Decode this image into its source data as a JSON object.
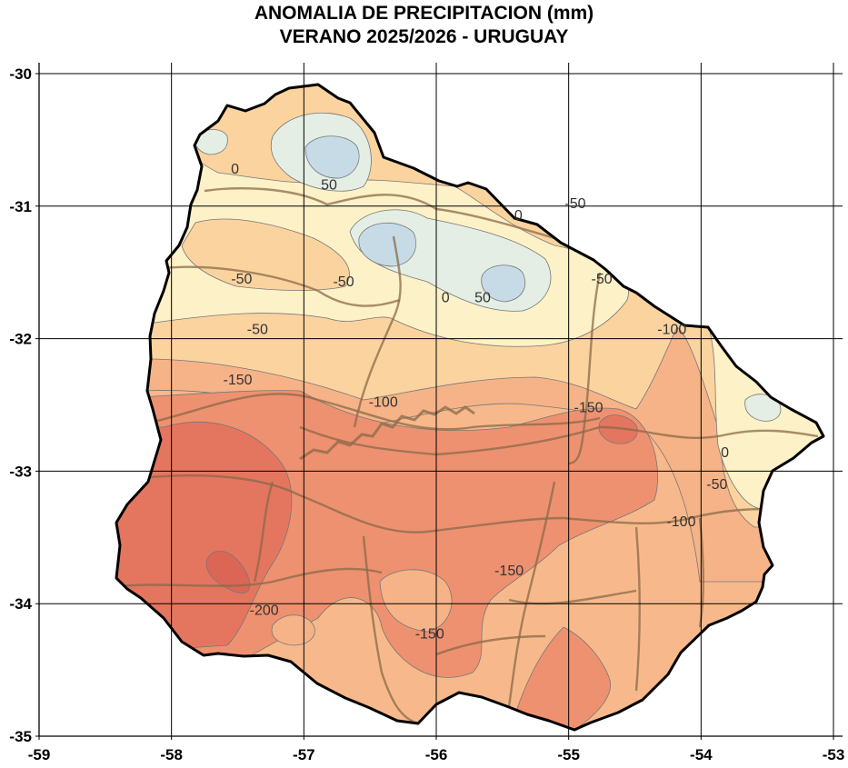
{
  "title": {
    "line1": "ANOMALIA DE PRECIPITACION (mm)",
    "line2": "VERANO 2025/2026 - URUGUAY"
  },
  "axes": {
    "x_ticks": [
      "-59",
      "-58",
      "-57",
      "-56",
      "-55",
      "-54",
      "-53"
    ],
    "y_ticks": [
      "-30",
      "-31",
      "-32",
      "-33",
      "-34",
      "-35"
    ],
    "xlim": [
      -59,
      -53
    ],
    "ylim": [
      -35,
      -30
    ],
    "grid": true
  },
  "colors": {
    "land_background": "#f7b98b",
    "contour_line": "#777777",
    "border_line": "#000000",
    "department_line": "#8a6a48",
    "levels": {
      "-200": "#e4765f",
      "-150": "#ee9170",
      "-100": "#f6b388",
      "-50": "#fbd39f",
      "0": "#fdf1c7",
      "50": "#e4eee4",
      "100": "#c6dbe6"
    }
  },
  "contour_labels": [
    {
      "text": "0",
      "lon": -57.52,
      "lat": -30.72
    },
    {
      "text": "50",
      "lon": -56.81,
      "lat": -30.84
    },
    {
      "text": "-50",
      "lon": -54.95,
      "lat": -30.98
    },
    {
      "text": "0",
      "lon": -55.38,
      "lat": -31.07
    },
    {
      "text": "-50",
      "lon": -57.47,
      "lat": -31.55
    },
    {
      "text": "-50",
      "lon": -56.7,
      "lat": -31.57
    },
    {
      "text": "0",
      "lon": -55.93,
      "lat": -31.69
    },
    {
      "text": "50",
      "lon": -55.65,
      "lat": -31.69
    },
    {
      "text": "-50",
      "lon": -54.75,
      "lat": -31.55
    },
    {
      "text": "-50",
      "lon": -57.35,
      "lat": -31.93
    },
    {
      "text": "-100",
      "lon": -54.22,
      "lat": -31.93
    },
    {
      "text": "-150",
      "lon": -57.5,
      "lat": -32.31
    },
    {
      "text": "-100",
      "lon": -56.4,
      "lat": -32.48
    },
    {
      "text": "-150",
      "lon": -54.85,
      "lat": -32.52
    },
    {
      "text": "0",
      "lon": -53.82,
      "lat": -32.86
    },
    {
      "text": "-50",
      "lon": -53.88,
      "lat": -33.1
    },
    {
      "text": "-100",
      "lon": -54.15,
      "lat": -33.38
    },
    {
      "text": "-150",
      "lon": -55.45,
      "lat": -33.75
    },
    {
      "text": "-200",
      "lon": -57.3,
      "lat": -34.05
    },
    {
      "text": "-150",
      "lon": -56.05,
      "lat": -34.23
    }
  ],
  "legend": "none"
}
